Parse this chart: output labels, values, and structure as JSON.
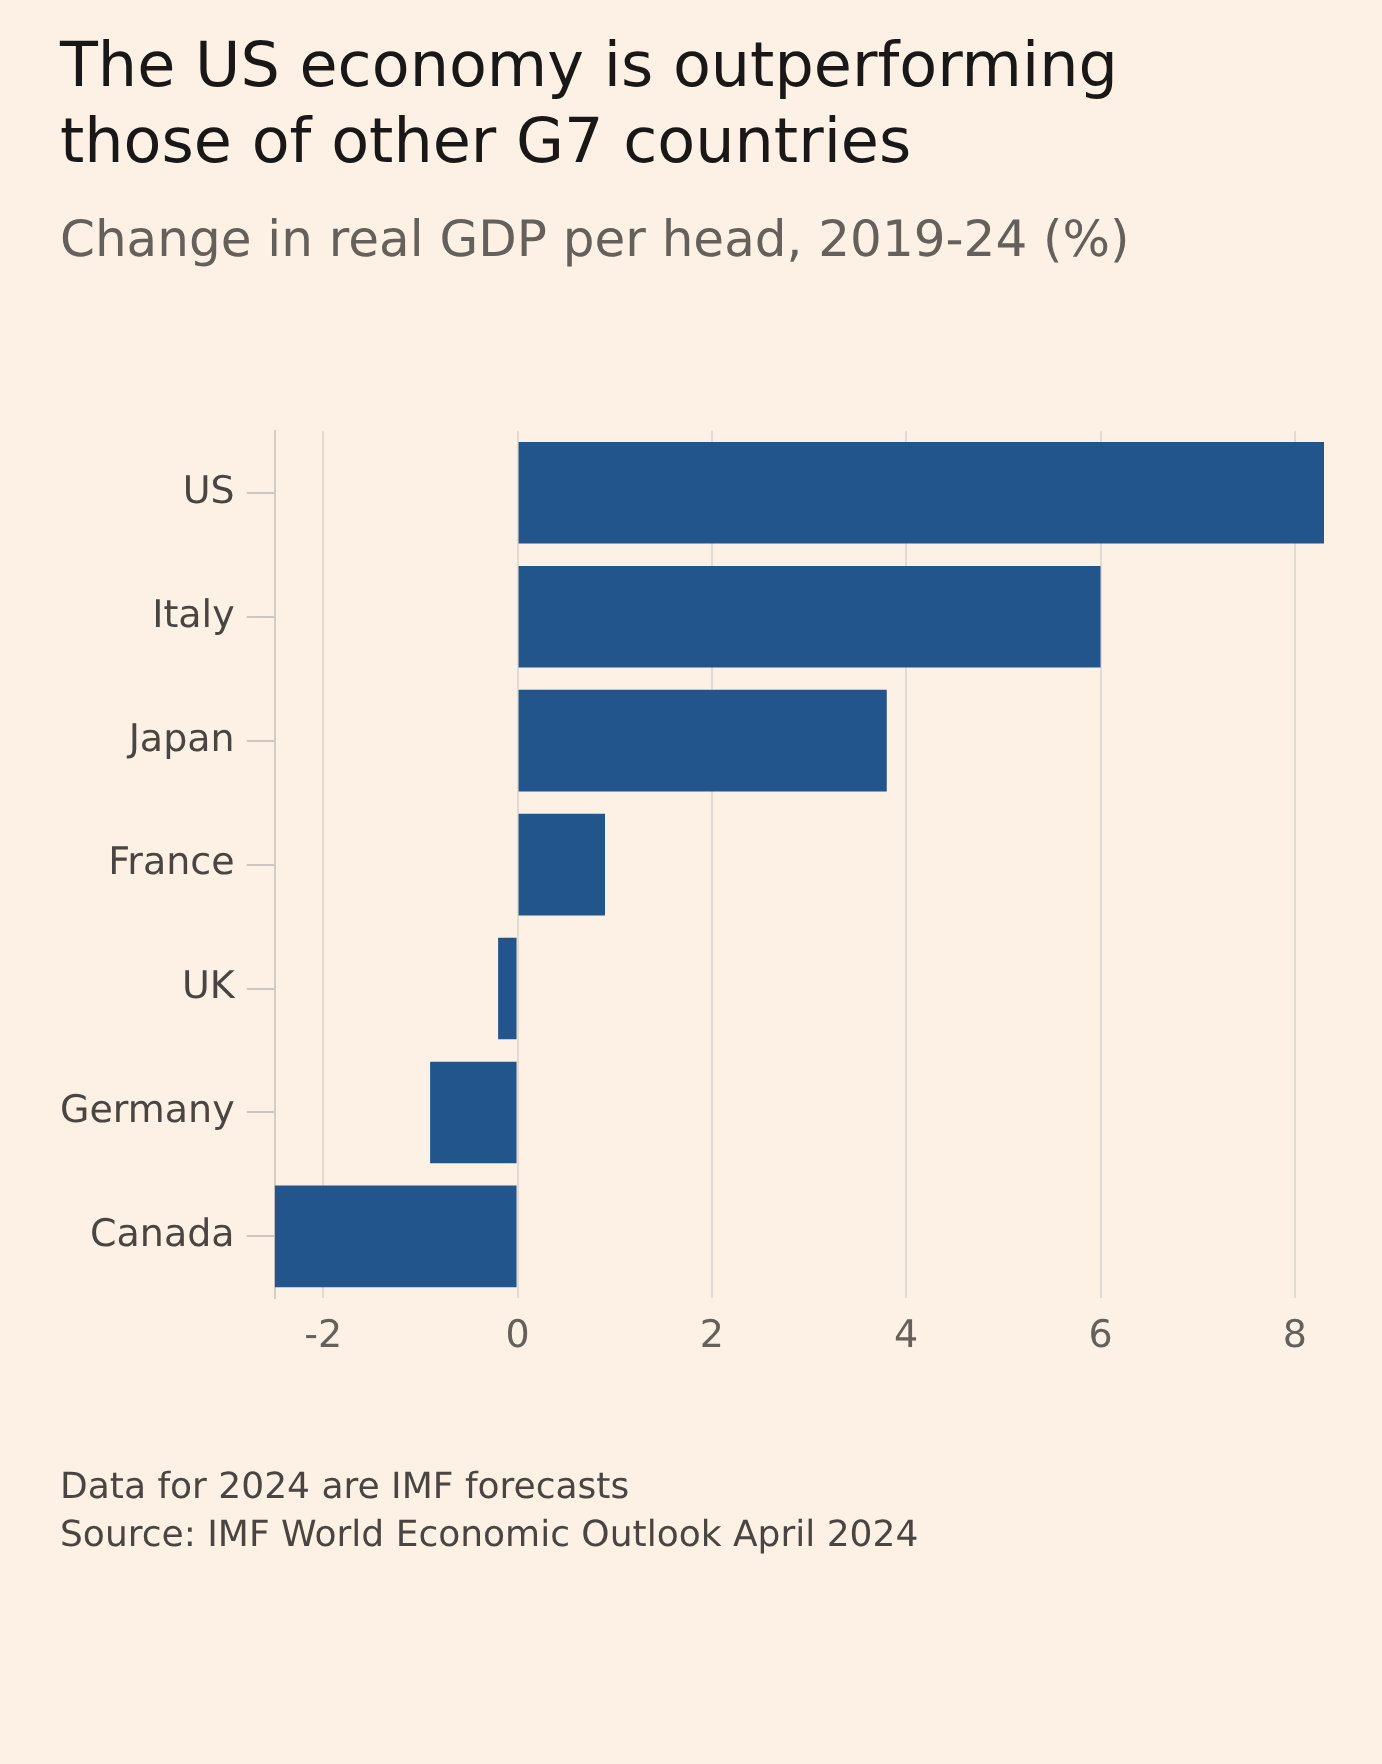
{
  "chart_data": {
    "type": "bar",
    "orientation": "horizontal",
    "title": "The US economy is outperforming those of other G7 countries",
    "subtitle": "Change in real GDP per head, 2019-24 (%)",
    "categories": [
      "US",
      "Italy",
      "Japan",
      "France",
      "UK",
      "Germany",
      "Canada"
    ],
    "values": [
      8.3,
      6.0,
      3.8,
      0.9,
      -0.2,
      -0.9,
      -2.5
    ],
    "color": "#22558b",
    "xlim": [
      -2.5,
      8.3
    ],
    "xticks": [
      -2,
      0,
      2,
      4,
      6,
      8
    ],
    "grid": "x",
    "legend": false,
    "annotations": [
      "Data for 2024 are IMF forecasts",
      "Source: IMF World Economic Outlook April 2024"
    ]
  }
}
